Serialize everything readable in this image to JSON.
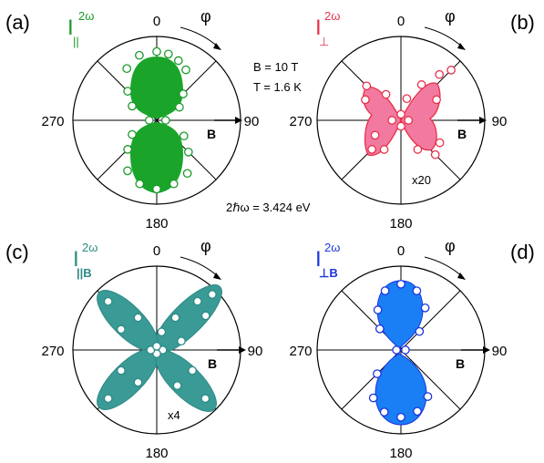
{
  "chart_data": [
    {
      "type": "polar",
      "panel_label": "(a)",
      "quantity": "I",
      "superscript": "2ω",
      "subscript": "||",
      "color": "#1a9a2a",
      "fill_color": "#1aa52a",
      "angle_labels": {
        "top": "0",
        "right": "90",
        "bottom": "180",
        "left": "270"
      },
      "direction_label": "φ",
      "field_label": "B",
      "multiplier": "",
      "data_points": [
        {
          "angle": 0,
          "r": 0.92
        },
        {
          "angle": 10,
          "r": 0.9
        },
        {
          "angle": 20,
          "r": 0.85
        },
        {
          "angle": 30,
          "r": 0.78
        },
        {
          "angle": 45,
          "r": 0.5
        },
        {
          "angle": 60,
          "r": 0.35
        },
        {
          "angle": 90,
          "r": 0.12
        },
        {
          "angle": 120,
          "r": 0.42
        },
        {
          "angle": 135,
          "r": 0.6
        },
        {
          "angle": 150,
          "r": 0.82
        },
        {
          "angle": 165,
          "r": 0.88
        },
        {
          "angle": 180,
          "r": 0.92
        },
        {
          "angle": 195,
          "r": 0.88
        },
        {
          "angle": 210,
          "r": 0.78
        },
        {
          "angle": 225,
          "r": 0.55
        },
        {
          "angle": 240,
          "r": 0.38
        },
        {
          "angle": 270,
          "r": 0.1
        },
        {
          "angle": 300,
          "r": 0.38
        },
        {
          "angle": 315,
          "r": 0.55
        },
        {
          "angle": 330,
          "r": 0.8
        },
        {
          "angle": 345,
          "r": 0.9
        }
      ]
    },
    {
      "type": "polar",
      "panel_label": "(b)",
      "quantity": "I",
      "superscript": "2ω",
      "subscript": "⊥",
      "color": "#e8304a",
      "fill_color": "#f27aa0",
      "angle_labels": {
        "top": "0",
        "right": "90",
        "bottom": "180",
        "left": "270"
      },
      "direction_label": "φ",
      "field_label": "B",
      "multiplier": "x20",
      "data_points": [
        {
          "angle": 15,
          "r": 0.3
        },
        {
          "angle": 30,
          "r": 0.55
        },
        {
          "angle": 40,
          "r": 0.8
        },
        {
          "angle": 45,
          "r": 0.95
        },
        {
          "angle": 60,
          "r": 0.55
        },
        {
          "angle": 90,
          "r": 0.1
        },
        {
          "angle": 120,
          "r": 0.6
        },
        {
          "angle": 135,
          "r": 0.65
        },
        {
          "angle": 150,
          "r": 0.45
        },
        {
          "angle": 180,
          "r": 0.08
        },
        {
          "angle": 210,
          "r": 0.45
        },
        {
          "angle": 225,
          "r": 0.55
        },
        {
          "angle": 240,
          "r": 0.4
        },
        {
          "angle": 270,
          "r": 0.12
        },
        {
          "angle": 300,
          "r": 0.55
        },
        {
          "angle": 315,
          "r": 0.65
        },
        {
          "angle": 330,
          "r": 0.4
        },
        {
          "angle": 0,
          "r": 0.08
        }
      ]
    },
    {
      "type": "polar",
      "panel_label": "(c)",
      "quantity": "I",
      "superscript": "2ω",
      "subscript": "||B",
      "color": "#2e8a85",
      "fill_color": "#3a9a95",
      "angle_labels": {
        "top": "0",
        "right": "90",
        "bottom": "180",
        "left": "270"
      },
      "direction_label": "φ",
      "field_label": "B",
      "multiplier": "x4",
      "data_points": [
        {
          "angle": 15,
          "r": 0.25
        },
        {
          "angle": 30,
          "r": 0.5
        },
        {
          "angle": 40,
          "r": 0.85
        },
        {
          "angle": 45,
          "r": 1.05
        },
        {
          "angle": 55,
          "r": 0.8
        },
        {
          "angle": 70,
          "r": 0.35
        },
        {
          "angle": 90,
          "r": 0.08
        },
        {
          "angle": 120,
          "r": 0.55
        },
        {
          "angle": 135,
          "r": 0.92
        },
        {
          "angle": 150,
          "r": 0.55
        },
        {
          "angle": 180,
          "r": 0.05
        },
        {
          "angle": 210,
          "r": 0.5
        },
        {
          "angle": 225,
          "r": 0.92
        },
        {
          "angle": 240,
          "r": 0.55
        },
        {
          "angle": 270,
          "r": 0.08
        },
        {
          "angle": 300,
          "r": 0.55
        },
        {
          "angle": 315,
          "r": 0.92
        },
        {
          "angle": 330,
          "r": 0.5
        },
        {
          "angle": 0,
          "r": 0.05
        }
      ]
    },
    {
      "type": "polar",
      "panel_label": "(d)",
      "quantity": "I",
      "superscript": "2ω",
      "subscript": "⊥B",
      "color": "#1a35e0",
      "fill_color": "#1a7ef5",
      "angle_labels": {
        "top": "0",
        "right": "90",
        "bottom": "180",
        "left": "270"
      },
      "direction_label": "φ",
      "field_label": "B",
      "multiplier": "",
      "data_points": [
        {
          "angle": 0,
          "r": 0.88
        },
        {
          "angle": 15,
          "r": 0.82
        },
        {
          "angle": 30,
          "r": 0.65
        },
        {
          "angle": 45,
          "r": 0.35
        },
        {
          "angle": 90,
          "r": 0.06
        },
        {
          "angle": 150,
          "r": 0.72
        },
        {
          "angle": 165,
          "r": 0.85
        },
        {
          "angle": 180,
          "r": 0.9
        },
        {
          "angle": 195,
          "r": 0.86
        },
        {
          "angle": 210,
          "r": 0.74
        },
        {
          "angle": 225,
          "r": 0.45
        },
        {
          "angle": 270,
          "r": 0.06
        },
        {
          "angle": 315,
          "r": 0.4
        },
        {
          "angle": 330,
          "r": 0.62
        },
        {
          "angle": 345,
          "r": 0.82
        }
      ]
    }
  ],
  "annotations": {
    "field_strength": "B = 10 T",
    "temperature": "T = 1.6 K",
    "photon_energy": "2ℏω = 3.424 eV"
  }
}
